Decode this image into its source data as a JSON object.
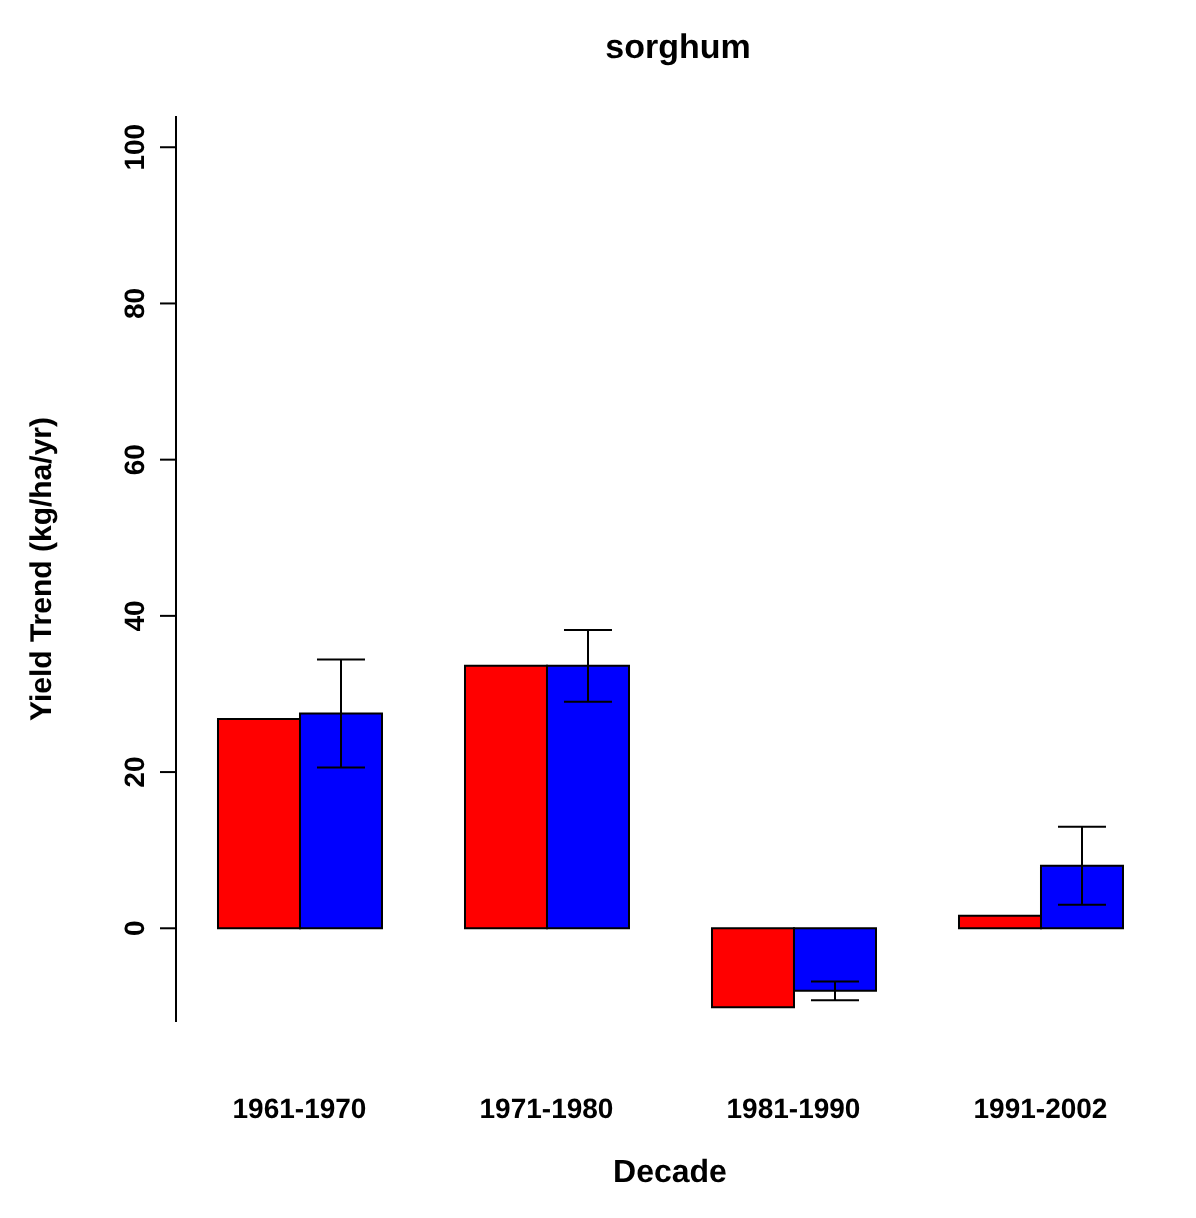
{
  "chart_data": {
    "type": "bar",
    "title": "sorghum",
    "xlabel": "Decade",
    "ylabel": "Yield Trend (kg/ha/yr)",
    "categories": [
      "1961-1970",
      "1971-1980",
      "1981-1990",
      "1991-2002"
    ],
    "series": [
      {
        "color": "#ff0000",
        "values": [
          26.8,
          33.6,
          -10.1,
          1.6
        ]
      },
      {
        "color": "#0000ff",
        "values": [
          27.5,
          33.6,
          -8.0,
          8.0
        ],
        "errors": [
          6.9,
          4.6,
          1.2,
          5.0
        ]
      }
    ],
    "ylim": [
      -12,
      104
    ],
    "yticks": [
      0,
      20,
      40,
      60,
      80,
      100
    ],
    "grid": false,
    "legend": false
  }
}
